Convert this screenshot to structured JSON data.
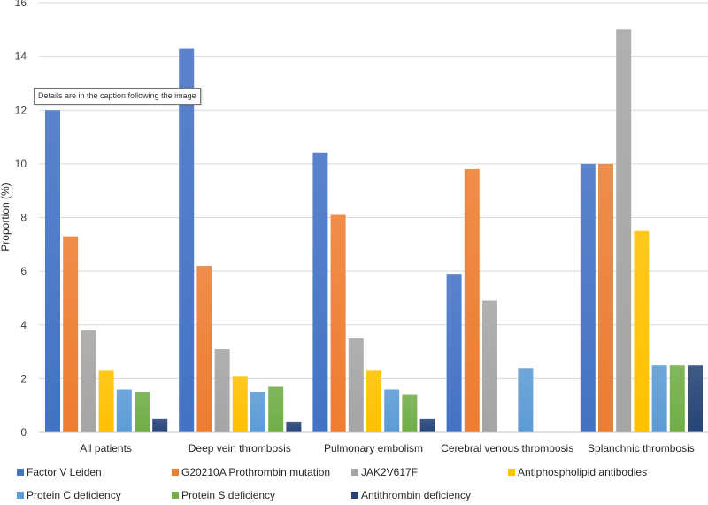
{
  "chart_data": {
    "type": "bar",
    "title": "",
    "xlabel": "",
    "ylabel": "Proportion (%)",
    "ylim": [
      0,
      16
    ],
    "yticks": [
      0,
      2,
      4,
      6,
      8,
      10,
      12,
      14,
      16
    ],
    "grid": true,
    "legend_position": "bottom",
    "categories": [
      "All patients",
      "Deep vein thrombosis",
      "Pulmonary embolism",
      "Cerebral venous thrombosis",
      "Splanchnic thrombosis"
    ],
    "series": [
      {
        "name": "Factor V Leiden",
        "color": "#4472c4",
        "values": [
          12.0,
          14.3,
          10.4,
          5.9,
          10.0
        ]
      },
      {
        "name": "G20210A Prothrombin mutation",
        "color": "#ed7d31",
        "values": [
          7.3,
          6.2,
          8.1,
          9.8,
          10.0
        ]
      },
      {
        "name": "JAK2V617F",
        "color": "#a5a5a5",
        "values": [
          3.8,
          3.1,
          3.5,
          4.9,
          15.0
        ]
      },
      {
        "name": "Antiphospholipid antibodies",
        "color": "#ffc000",
        "values": [
          2.3,
          2.1,
          2.3,
          0,
          7.5
        ]
      },
      {
        "name": "Protein C deficiency",
        "color": "#5b9bd5",
        "values": [
          1.6,
          1.5,
          1.6,
          2.4,
          2.5
        ]
      },
      {
        "name": "Protein S deficiency",
        "color": "#70ad47",
        "values": [
          1.5,
          1.7,
          1.4,
          0,
          2.5
        ]
      },
      {
        "name": "Antithrombin deficiency",
        "color": "#264478",
        "values": [
          0.5,
          0.4,
          0.5,
          0,
          2.5
        ]
      }
    ]
  },
  "tooltip": {
    "text": "Details are in the caption following the image"
  }
}
